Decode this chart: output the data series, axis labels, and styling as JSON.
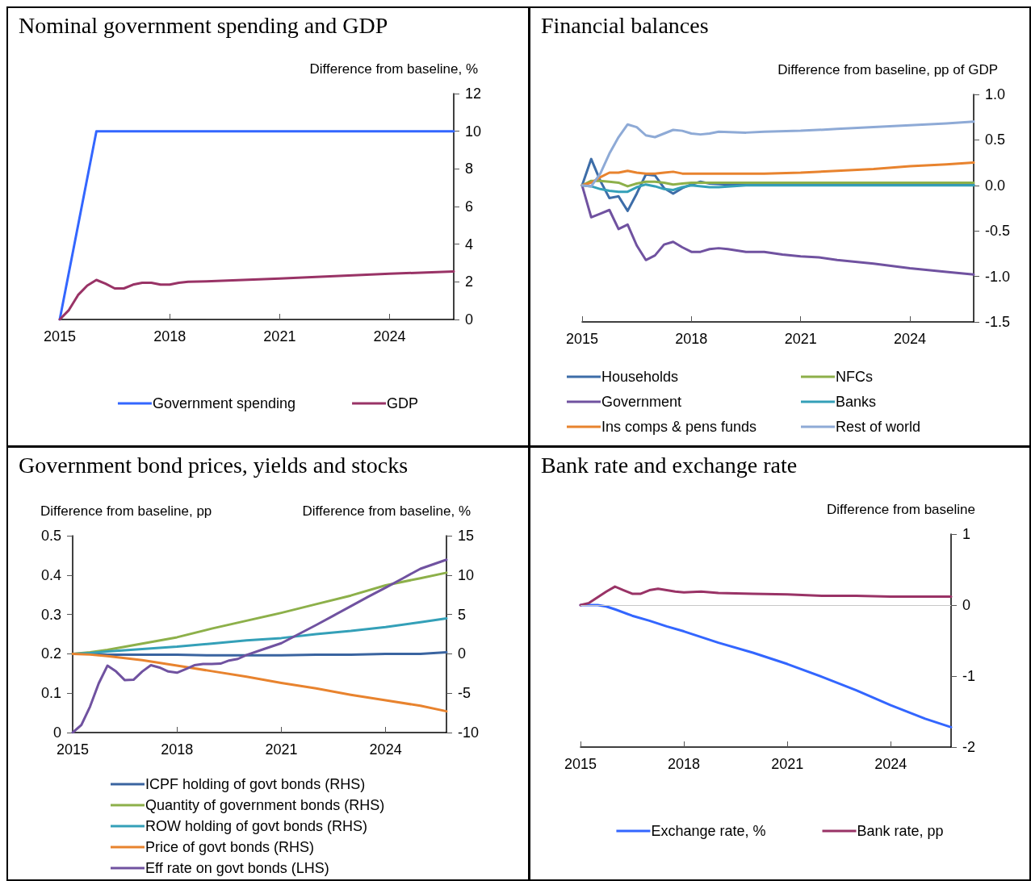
{
  "chart_data": [
    {
      "type": "line",
      "title": "Nominal government spending and GDP",
      "y2label": "Difference from baseline, %",
      "xlim": [
        2015,
        2025.75
      ],
      "xticks": [
        2015,
        2018,
        2021,
        2024
      ],
      "y2lim": [
        0,
        12
      ],
      "y2ticks": [
        0,
        2,
        4,
        6,
        8,
        10,
        12
      ],
      "legend": "bottom",
      "grid": false,
      "series": [
        {
          "name": "Government spending",
          "color": "#3366ff",
          "axis": "y2",
          "x": [
            2015,
            2016,
            2025.75
          ],
          "values": [
            0,
            10,
            10
          ]
        },
        {
          "name": "GDP",
          "color": "#993366",
          "axis": "y2",
          "x": [
            2015,
            2015.25,
            2015.5,
            2015.75,
            2016,
            2016.25,
            2016.5,
            2016.75,
            2017,
            2017.25,
            2017.5,
            2017.75,
            2018,
            2018.25,
            2018.5,
            2019,
            2020,
            2021,
            2022,
            2023,
            2024,
            2025,
            2025.75
          ],
          "values": [
            0,
            0.5,
            1.3,
            1.8,
            2.1,
            1.9,
            1.65,
            1.65,
            1.85,
            1.95,
            1.95,
            1.85,
            1.85,
            1.95,
            2.0,
            2.03,
            2.1,
            2.18,
            2.26,
            2.35,
            2.43,
            2.5,
            2.55
          ]
        }
      ]
    },
    {
      "type": "line",
      "title": "Financial balances",
      "y2label": "Difference from baseline, pp of GDP",
      "xlim": [
        2015,
        2025.75
      ],
      "xticks": [
        2015,
        2018,
        2021,
        2024
      ],
      "y2lim": [
        -1.5,
        1.0
      ],
      "y2ticks": [
        {
          "value": -1.5,
          "label": "-1.5"
        },
        {
          "value": -1,
          "label": "-1.0"
        },
        {
          "value": -0.5,
          "label": "-0.5"
        },
        {
          "value": 0,
          "label": "0.0"
        },
        {
          "value": 0.5,
          "label": "0.5"
        },
        {
          "value": 1,
          "label": "1.0"
        }
      ],
      "legend": "bottom",
      "grid": false,
      "series": [
        {
          "name": "Households",
          "color": "#3d6da8",
          "axis": "y2",
          "x": [
            2015,
            2015.25,
            2015.5,
            2015.75,
            2016,
            2016.25,
            2016.5,
            2016.75,
            2017,
            2017.25,
            2017.5,
            2017.75,
            2018,
            2018.25,
            2018.5,
            2019,
            2025.75
          ],
          "values": [
            0,
            0.29,
            0.05,
            -0.14,
            -0.12,
            -0.28,
            -0.09,
            0.12,
            0.11,
            -0.03,
            -0.09,
            -0.03,
            0.01,
            0.04,
            0.02,
            0.01,
            0.01
          ]
        },
        {
          "name": "NFCs",
          "color": "#8db04a",
          "axis": "y2",
          "x": [
            2015,
            2015.25,
            2015.5,
            2015.75,
            2016,
            2016.25,
            2016.5,
            2016.75,
            2017,
            2017.25,
            2017.5,
            2017.75,
            2018,
            2018.5,
            2025.75
          ],
          "values": [
            0,
            0.05,
            0.05,
            0.04,
            0.03,
            -0.01,
            0.02,
            0.04,
            0.04,
            0.03,
            0.01,
            0.02,
            0.03,
            0.03,
            0.03
          ]
        },
        {
          "name": "Government",
          "color": "#7052a0",
          "axis": "y2",
          "x": [
            2015,
            2015.25,
            2015.5,
            2015.75,
            2016,
            2016.25,
            2016.5,
            2016.75,
            2017,
            2017.25,
            2017.5,
            2017.75,
            2018,
            2018.25,
            2018.5,
            2018.75,
            2019,
            2019.5,
            2020,
            2020.5,
            2021,
            2021.5,
            2022,
            2023,
            2024,
            2025,
            2025.75
          ],
          "values": [
            0,
            -0.35,
            -0.31,
            -0.27,
            -0.48,
            -0.43,
            -0.66,
            -0.82,
            -0.77,
            -0.65,
            -0.62,
            -0.68,
            -0.73,
            -0.73,
            -0.7,
            -0.69,
            -0.7,
            -0.73,
            -0.73,
            -0.76,
            -0.78,
            -0.79,
            -0.82,
            -0.86,
            -0.91,
            -0.95,
            -0.98
          ]
        },
        {
          "name": "Banks",
          "color": "#34a0b8",
          "axis": "y2",
          "x": [
            2015,
            2015.25,
            2015.5,
            2015.75,
            2016,
            2016.25,
            2016.5,
            2016.75,
            2017,
            2017.25,
            2017.5,
            2017.75,
            2018,
            2018.5,
            2018.75,
            2019.5,
            2025.75
          ],
          "values": [
            0,
            -0.01,
            -0.04,
            -0.06,
            -0.07,
            -0.07,
            -0.02,
            0.01,
            -0.01,
            -0.04,
            -0.05,
            -0.02,
            0,
            -0.02,
            -0.02,
            0,
            0
          ]
        },
        {
          "name": "Ins comps & pens funds",
          "color": "#e8832e",
          "axis": "y2",
          "x": [
            2015,
            2015.25,
            2015.5,
            2015.75,
            2016,
            2016.25,
            2016.5,
            2016.75,
            2017,
            2017.25,
            2017.5,
            2017.75,
            2018,
            2019,
            2020,
            2021,
            2022,
            2023,
            2024,
            2025,
            2025.75
          ],
          "values": [
            0,
            0.03,
            0.09,
            0.14,
            0.14,
            0.16,
            0.14,
            0.13,
            0.13,
            0.14,
            0.15,
            0.13,
            0.13,
            0.13,
            0.13,
            0.14,
            0.16,
            0.18,
            0.21,
            0.23,
            0.25
          ]
        },
        {
          "name": "Rest of world",
          "color": "#8eaad6",
          "axis": "y2",
          "x": [
            2015,
            2015.25,
            2015.5,
            2015.75,
            2016,
            2016.25,
            2016.5,
            2016.75,
            2017,
            2017.25,
            2017.5,
            2017.75,
            2018,
            2018.25,
            2018.5,
            2018.75,
            2019.5,
            2020,
            2021,
            2022,
            2023,
            2024,
            2025,
            2025.75
          ],
          "values": [
            0,
            -0.01,
            0.13,
            0.35,
            0.53,
            0.67,
            0.64,
            0.55,
            0.53,
            0.57,
            0.61,
            0.6,
            0.57,
            0.56,
            0.57,
            0.59,
            0.58,
            0.59,
            0.6,
            0.62,
            0.64,
            0.66,
            0.68,
            0.7
          ]
        }
      ]
    },
    {
      "type": "line",
      "title": "Government bond prices, yields and stocks",
      "ylabel": "Difference from baseline, pp",
      "y2label": "Difference from baseline, %",
      "xlim": [
        2015,
        2025.75
      ],
      "xticks": [
        2015,
        2018,
        2021,
        2024
      ],
      "ylim": [
        0,
        0.5
      ],
      "yticks": [
        0,
        0.1,
        0.2,
        0.3,
        0.4,
        0.5
      ],
      "y2lim": [
        -10,
        15
      ],
      "y2ticks": [
        -10,
        -5,
        0,
        5,
        10,
        15
      ],
      "legend": "bottom",
      "grid": false,
      "series": [
        {
          "name": "ICPF holding of govt bonds (RHS)",
          "color": "#3a64a0",
          "axis": "y2",
          "x": [
            2015,
            2015.5,
            2016,
            2017,
            2018,
            2019,
            2020,
            2021,
            2022,
            2023,
            2024,
            2025,
            2025.75
          ],
          "values": [
            0,
            0,
            -0.1,
            -0.1,
            -0.1,
            -0.2,
            -0.2,
            -0.2,
            -0.1,
            -0.1,
            0,
            0,
            0.2
          ]
        },
        {
          "name": "Quantity of government bonds (RHS)",
          "color": "#8db04a",
          "axis": "y2",
          "x": [
            2015,
            2015.5,
            2016,
            2017,
            2018,
            2019,
            2020,
            2021,
            2022,
            2023,
            2024,
            2025,
            2025.75
          ],
          "values": [
            0,
            0.2,
            0.5,
            1.3,
            2.1,
            3.2,
            4.2,
            5.2,
            6.3,
            7.4,
            8.7,
            9.6,
            10.3
          ]
        },
        {
          "name": "ROW holding of govt bonds (RHS)",
          "color": "#34a0b8",
          "axis": "y2",
          "x": [
            2015,
            2015.5,
            2016,
            2017,
            2018,
            2019,
            2020,
            2021,
            2022,
            2023,
            2024,
            2025,
            2025.75
          ],
          "values": [
            0,
            0.1,
            0.3,
            0.6,
            0.9,
            1.3,
            1.7,
            2.0,
            2.5,
            2.9,
            3.4,
            4.0,
            4.5
          ]
        },
        {
          "name": "Price of govt bonds (RHS)",
          "color": "#e8832e",
          "axis": "y2",
          "x": [
            2015,
            2015.5,
            2016,
            2017,
            2018,
            2019,
            2020,
            2021,
            2022,
            2023,
            2024,
            2025,
            2025.75
          ],
          "values": [
            0,
            -0.1,
            -0.3,
            -0.8,
            -1.5,
            -2.2,
            -2.9,
            -3.7,
            -4.4,
            -5.2,
            -5.9,
            -6.6,
            -7.3
          ]
        },
        {
          "name": "Eff rate on govt bonds (LHS)",
          "color": "#7052a0",
          "axis": "y",
          "x": [
            2015,
            2015.25,
            2015.5,
            2015.75,
            2016,
            2016.25,
            2016.5,
            2016.75,
            2017,
            2017.25,
            2017.5,
            2017.75,
            2018,
            2018.25,
            2018.5,
            2018.75,
            2019,
            2019.25,
            2019.5,
            2019.75,
            2020,
            2020.5,
            2021,
            2021.5,
            2022,
            2022.5,
            2023,
            2023.5,
            2024,
            2024.5,
            2025,
            2025.75
          ],
          "values": [
            0,
            0.019,
            0.066,
            0.125,
            0.17,
            0.155,
            0.133,
            0.134,
            0.155,
            0.171,
            0.165,
            0.155,
            0.152,
            0.161,
            0.171,
            0.174,
            0.174,
            0.175,
            0.183,
            0.187,
            0.197,
            0.212,
            0.227,
            0.25,
            0.273,
            0.297,
            0.321,
            0.345,
            0.368,
            0.392,
            0.416,
            0.439
          ]
        }
      ]
    },
    {
      "type": "line",
      "title": "Bank rate and exchange rate",
      "y2label": "Difference from baseline",
      "xlim": [
        2015,
        2025.75
      ],
      "xticks": [
        2015,
        2018,
        2021,
        2024
      ],
      "y2lim": [
        -2,
        1
      ],
      "y2ticks": [
        -2,
        -1,
        0,
        1
      ],
      "legend": "bottom",
      "grid": false,
      "ref_lines": [
        {
          "axis": "y2",
          "value": 0,
          "color": "#c8c8c8"
        }
      ],
      "series": [
        {
          "name": "Exchange rate, %",
          "color": "#3366ff",
          "axis": "y2",
          "x": [
            2015,
            2015.5,
            2015.75,
            2016,
            2016.5,
            2017,
            2017.5,
            2018,
            2019,
            2020,
            2021,
            2022,
            2023,
            2024,
            2025,
            2025.75
          ],
          "values": [
            0,
            0,
            -0.02,
            -0.06,
            -0.15,
            -0.22,
            -0.3,
            -0.37,
            -0.53,
            -0.67,
            -0.83,
            -1.01,
            -1.2,
            -1.41,
            -1.6,
            -1.72
          ]
        },
        {
          "name": "Bank rate, pp",
          "color": "#993366",
          "axis": "y2",
          "x": [
            2015,
            2015.25,
            2015.5,
            2015.75,
            2016,
            2016.25,
            2016.5,
            2016.75,
            2017,
            2017.25,
            2017.5,
            2017.75,
            2018,
            2018.5,
            2019,
            2020,
            2021,
            2022,
            2023,
            2024,
            2025.75
          ],
          "values": [
            0,
            0.03,
            0.11,
            0.19,
            0.26,
            0.21,
            0.16,
            0.16,
            0.21,
            0.23,
            0.21,
            0.19,
            0.18,
            0.19,
            0.17,
            0.16,
            0.15,
            0.13,
            0.13,
            0.12,
            0.12
          ]
        }
      ]
    }
  ]
}
